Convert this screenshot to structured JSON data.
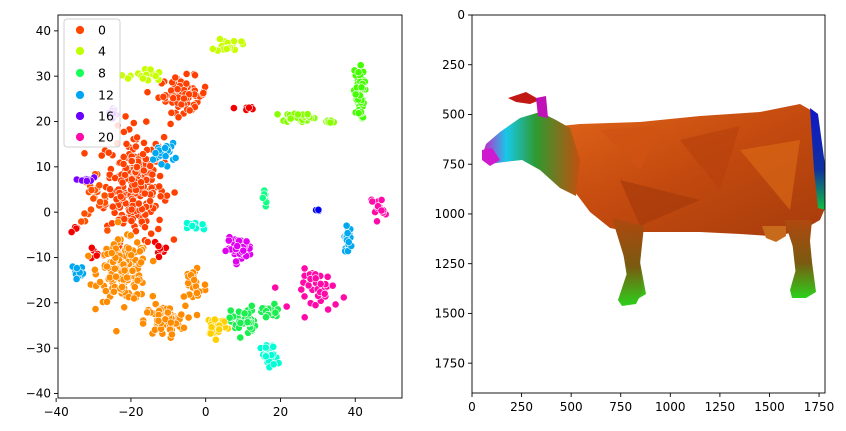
{
  "chart_data": [
    {
      "type": "scatter",
      "title": "",
      "xlabel": "",
      "ylabel": "",
      "xlim": [
        -39.5,
        52.5
      ],
      "ylim": [
        -41,
        43.5
      ],
      "xticks": [
        -40,
        -20,
        0,
        20,
        40
      ],
      "yticks": [
        -40,
        -30,
        -20,
        -10,
        0,
        10,
        20,
        30,
        40
      ],
      "grid": false,
      "legend": {
        "placement": "top-left",
        "entries": [
          {
            "label": "0",
            "color": "#ff4500"
          },
          {
            "label": "4",
            "color": "#bfff00"
          },
          {
            "label": "8",
            "color": "#1aff5c"
          },
          {
            "label": "12",
            "color": "#00a5f5"
          },
          {
            "label": "16",
            "color": "#6a00ff"
          },
          {
            "label": "20",
            "color": "#ff0aa8"
          }
        ]
      },
      "clusters": [
        {
          "label": 0,
          "color": "#ff4000",
          "center": [
            -19,
            6
          ],
          "spread": [
            7,
            11
          ],
          "count": 240
        },
        {
          "label": 0,
          "color": "#ff4000",
          "center": [
            -6,
            26
          ],
          "spread": [
            6,
            3.5
          ],
          "count": 70
        },
        {
          "label": 0,
          "color": "#ff5000",
          "center": [
            -30,
            3
          ],
          "spread": [
            3,
            5
          ],
          "count": 25
        },
        {
          "label": 2,
          "color": "#f20000",
          "center": [
            -35,
            -4
          ],
          "spread": [
            1,
            1.2
          ],
          "count": 5
        },
        {
          "label": 2,
          "color": "#f20000",
          "center": [
            -12,
            -8
          ],
          "spread": [
            2,
            3
          ],
          "count": 12
        },
        {
          "label": 2,
          "color": "#f20000",
          "center": [
            11,
            23
          ],
          "spread": [
            3,
            0.7
          ],
          "count": 8
        },
        {
          "label": 2,
          "color": "#f20000",
          "center": [
            -29,
            -9
          ],
          "spread": [
            3,
            2
          ],
          "count": 6
        },
        {
          "label": 3,
          "color": "#ff8c00",
          "center": [
            -22,
            -13
          ],
          "spread": [
            6,
            6
          ],
          "count": 170
        },
        {
          "label": 3,
          "color": "#ff8c00",
          "center": [
            -11,
            -24
          ],
          "spread": [
            5,
            3
          ],
          "count": 70
        },
        {
          "label": 3,
          "color": "#ff8c00",
          "center": [
            -3,
            -16
          ],
          "spread": [
            3,
            5
          ],
          "count": 30
        },
        {
          "label": 4,
          "color": "#ffd000",
          "center": [
            3,
            -25
          ],
          "spread": [
            2.5,
            2
          ],
          "count": 35
        },
        {
          "label": 5,
          "color": "#c8ff00",
          "center": [
            -16,
            30
          ],
          "spread": [
            4,
            1.5
          ],
          "count": 25
        },
        {
          "label": 5,
          "color": "#c8ff00",
          "center": [
            6,
            37
          ],
          "spread": [
            3,
            1.5
          ],
          "count": 18
        },
        {
          "label": 6,
          "color": "#88ff00",
          "center": [
            25,
            21
          ],
          "spread": [
            4,
            1
          ],
          "count": 30
        },
        {
          "label": 6,
          "color": "#88ff00",
          "center": [
            33,
            20
          ],
          "spread": [
            2,
            0.5
          ],
          "count": 8
        },
        {
          "label": 7,
          "color": "#44ff00",
          "center": [
            41,
            26
          ],
          "spread": [
            1.3,
            5
          ],
          "count": 55
        },
        {
          "label": 8,
          "color": "#19f04f",
          "center": [
            10,
            -24
          ],
          "spread": [
            3,
            3
          ],
          "count": 35
        },
        {
          "label": 8,
          "color": "#19f04f",
          "center": [
            17,
            -22
          ],
          "spread": [
            3,
            1.5
          ],
          "count": 20
        },
        {
          "label": 9,
          "color": "#12ff88",
          "center": [
            16,
            3
          ],
          "spread": [
            0.6,
            2
          ],
          "count": 8
        },
        {
          "label": 10,
          "color": "#00ffd5",
          "center": [
            17,
            -32
          ],
          "spread": [
            2,
            2.5
          ],
          "count": 30
        },
        {
          "label": 10,
          "color": "#00ffd5",
          "center": [
            -3,
            -3
          ],
          "spread": [
            3.5,
            1
          ],
          "count": 15
        },
        {
          "label": 12,
          "color": "#00a8f0",
          "center": [
            -11,
            13
          ],
          "spread": [
            2.5,
            2
          ],
          "count": 22
        },
        {
          "label": 12,
          "color": "#00a8f0",
          "center": [
            -34,
            -13
          ],
          "spread": [
            1.5,
            1.5
          ],
          "count": 12
        },
        {
          "label": 12,
          "color": "#00a8f0",
          "center": [
            38,
            -6
          ],
          "spread": [
            0.8,
            2.5
          ],
          "count": 25
        },
        {
          "label": 14,
          "color": "#0000f0",
          "center": [
            30,
            0.5
          ],
          "spread": [
            1.5,
            0.5
          ],
          "count": 4
        },
        {
          "label": 16,
          "color": "#7b00ff",
          "center": [
            -32,
            7
          ],
          "spread": [
            1.5,
            1
          ],
          "count": 8
        },
        {
          "label": 16,
          "color": "#7b00ff",
          "center": [
            -25,
            22
          ],
          "spread": [
            2,
            1
          ],
          "count": 10
        },
        {
          "label": 18,
          "color": "#e000f0",
          "center": [
            9,
            -8
          ],
          "spread": [
            3,
            2
          ],
          "count": 45
        },
        {
          "label": 20,
          "color": "#ff0aa8",
          "center": [
            31,
            -17
          ],
          "spread": [
            6,
            4
          ],
          "count": 40
        },
        {
          "label": 20,
          "color": "#ff0aa8",
          "center": [
            46,
            1
          ],
          "spread": [
            1.5,
            2.5
          ],
          "count": 15
        }
      ]
    },
    {
      "type": "image",
      "title": "",
      "xlabel": "",
      "ylabel": "",
      "xlim": [
        0,
        1780
      ],
      "ylim": [
        1900,
        0
      ],
      "xticks": [
        0,
        250,
        500,
        750,
        1000,
        1250,
        1500,
        1750
      ],
      "yticks": [
        0,
        250,
        500,
        750,
        1000,
        1250,
        1500,
        1750
      ],
      "grid": false,
      "content": "cow-mesh-rendering",
      "body_colors": [
        "#d85a14",
        "#c84a10",
        "#b83e0c",
        "#e06a18",
        "#a8400e"
      ]
    }
  ]
}
